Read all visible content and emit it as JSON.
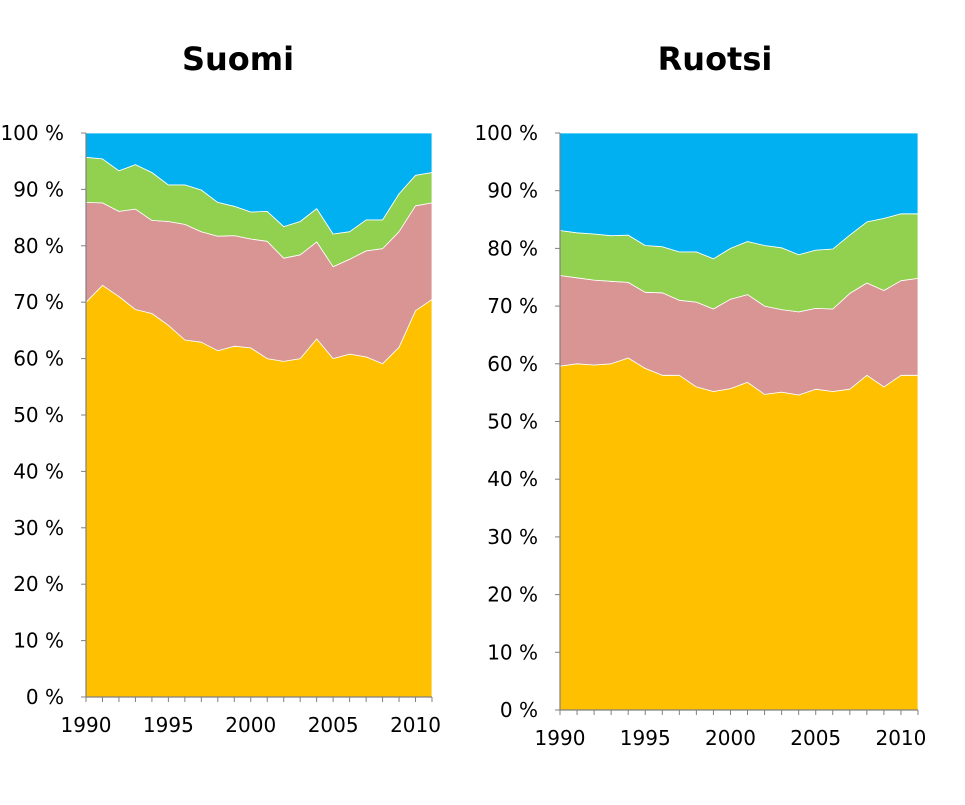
{
  "chart_data": [
    {
      "type": "area",
      "stacked": true,
      "percent": true,
      "title": "Suomi",
      "x": [
        1990,
        1991,
        1992,
        1993,
        1994,
        1995,
        1996,
        1997,
        1998,
        1999,
        2000,
        2001,
        2002,
        2003,
        2004,
        2005,
        2006,
        2007,
        2008,
        2009,
        2010,
        2011
      ],
      "series": [
        {
          "color": "#FFC000",
          "values": [
            70,
            73,
            71,
            68.7,
            68,
            65.9,
            63.3,
            62.9,
            61.4,
            62.2,
            61.9,
            60,
            59.5,
            60,
            63.5,
            60,
            60.8,
            60.3,
            59.1,
            62,
            68.5,
            70.5
          ]
        },
        {
          "color": "#D99594",
          "values": [
            17.7,
            14.6,
            15.1,
            17.8,
            16.5,
            18.4,
            20.5,
            19.6,
            20.3,
            19.6,
            19.3,
            20.8,
            18.3,
            18.4,
            17.2,
            16.3,
            16.8,
            18.8,
            20.4,
            20.5,
            18.6,
            17.1
          ]
        },
        {
          "color": "#92D050",
          "values": [
            8,
            7.8,
            7.2,
            7.9,
            8.5,
            6.5,
            7,
            7.4,
            6,
            5.2,
            4.8,
            5.3,
            5.6,
            5.9,
            5.9,
            5.8,
            4.9,
            5.5,
            5.1,
            6.7,
            5.4,
            5.4
          ]
        },
        {
          "color": "#00B0F0",
          "values": [
            4.3,
            4.6,
            6.7,
            5.6,
            7,
            9.2,
            9.2,
            10.1,
            12.3,
            13,
            14,
            13.9,
            16.6,
            15.7,
            13.4,
            17.9,
            17.5,
            15.4,
            15.4,
            10.8,
            7.5,
            7
          ]
        }
      ],
      "ylim": [
        0,
        100
      ],
      "yticks": [
        "0 %",
        "10 %",
        "20 %",
        "30 %",
        "40 %",
        "50 %",
        "60 %",
        "70 %",
        "80 %",
        "90 %",
        "100 %"
      ],
      "xticks": [
        "1990",
        "1995",
        "2000",
        "2005",
        "2010"
      ],
      "legend": "none",
      "grid": false
    },
    {
      "type": "area",
      "stacked": true,
      "percent": true,
      "title": "Ruotsi",
      "x": [
        1990,
        1991,
        1992,
        1993,
        1994,
        1995,
        1996,
        1997,
        1998,
        1999,
        2000,
        2001,
        2002,
        2003,
        2004,
        2005,
        2006,
        2007,
        2008,
        2009,
        2010,
        2011
      ],
      "series": [
        {
          "color": "#FFC000",
          "values": [
            59.6,
            60,
            59.8,
            60,
            61,
            59.2,
            58,
            58,
            56,
            55.2,
            55.7,
            56.8,
            54.7,
            55.1,
            54.6,
            55.6,
            55.2,
            55.6,
            58,
            56,
            58,
            58
          ]
        },
        {
          "color": "#D99594",
          "values": [
            15.7,
            14.9,
            14.7,
            14.3,
            13.1,
            13.2,
            14.3,
            13,
            14.7,
            14.3,
            15.5,
            15.2,
            15.3,
            14.3,
            14.4,
            14,
            14.3,
            16.6,
            16,
            16.7,
            16.4,
            16.8
          ]
        },
        {
          "color": "#92D050",
          "values": [
            7.8,
            7.8,
            8,
            7.9,
            8.2,
            8.1,
            8,
            8.4,
            8.7,
            8.7,
            8.8,
            9.2,
            10.5,
            10.7,
            9.9,
            10.1,
            10.4,
            10.1,
            10.6,
            12.5,
            11.6,
            11.2
          ]
        },
        {
          "color": "#00B0F0",
          "values": [
            16.9,
            17.3,
            17.5,
            17.8,
            17.7,
            19.5,
            19.7,
            20.6,
            20.6,
            21.8,
            20,
            18.8,
            19.5,
            19.9,
            21.1,
            20.3,
            20.1,
            17.7,
            15.4,
            14.8,
            14,
            14
          ]
        }
      ],
      "ylim": [
        0,
        100
      ],
      "yticks": [
        "0 %",
        "10 %",
        "20 %",
        "30 %",
        "40 %",
        "50 %",
        "60 %",
        "70 %",
        "80 %",
        "90 %",
        "100 %"
      ],
      "xticks": [
        "1990",
        "1995",
        "2000",
        "2005",
        "2010"
      ],
      "legend": "none",
      "grid": false
    }
  ]
}
